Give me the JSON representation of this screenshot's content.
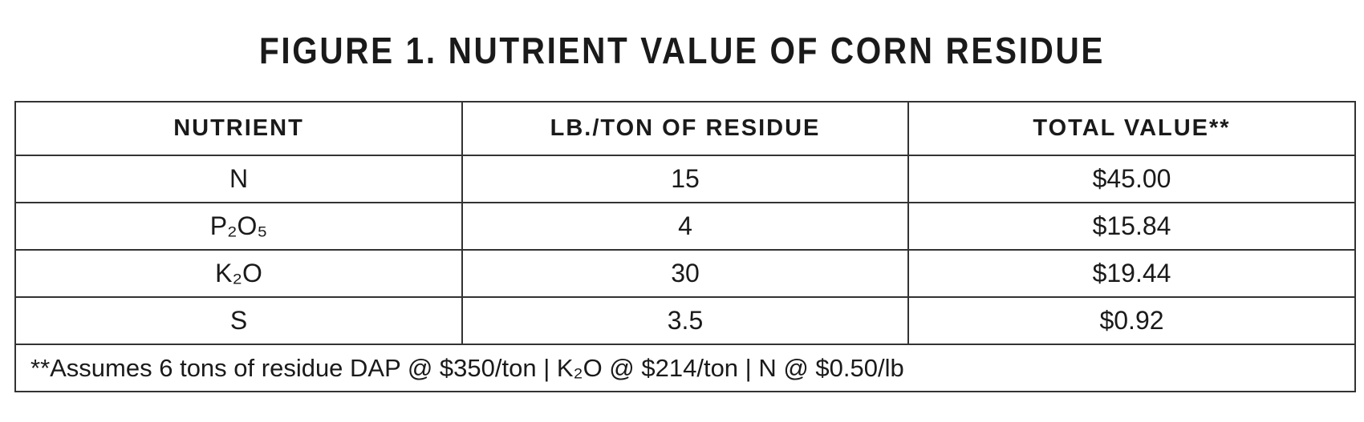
{
  "title": "FIGURE 1. NUTRIENT VALUE OF CORN RESIDUE",
  "table": {
    "header": [
      "NUTRIENT",
      "LB./TON OF RESIDUE",
      "TOTAL VALUE**"
    ],
    "rows": [
      [
        "N",
        "15",
        "$45.00"
      ],
      [
        "P₂O₅",
        "4",
        "$15.84"
      ],
      [
        "K₂O",
        "30",
        "$19.44"
      ],
      [
        "S",
        "3.5",
        "$0.92"
      ]
    ],
    "footnote": "**Assumes 6 tons of residue DAP @ $350/ton | K₂O @ $214/ton | N @ $0.50/lb"
  }
}
